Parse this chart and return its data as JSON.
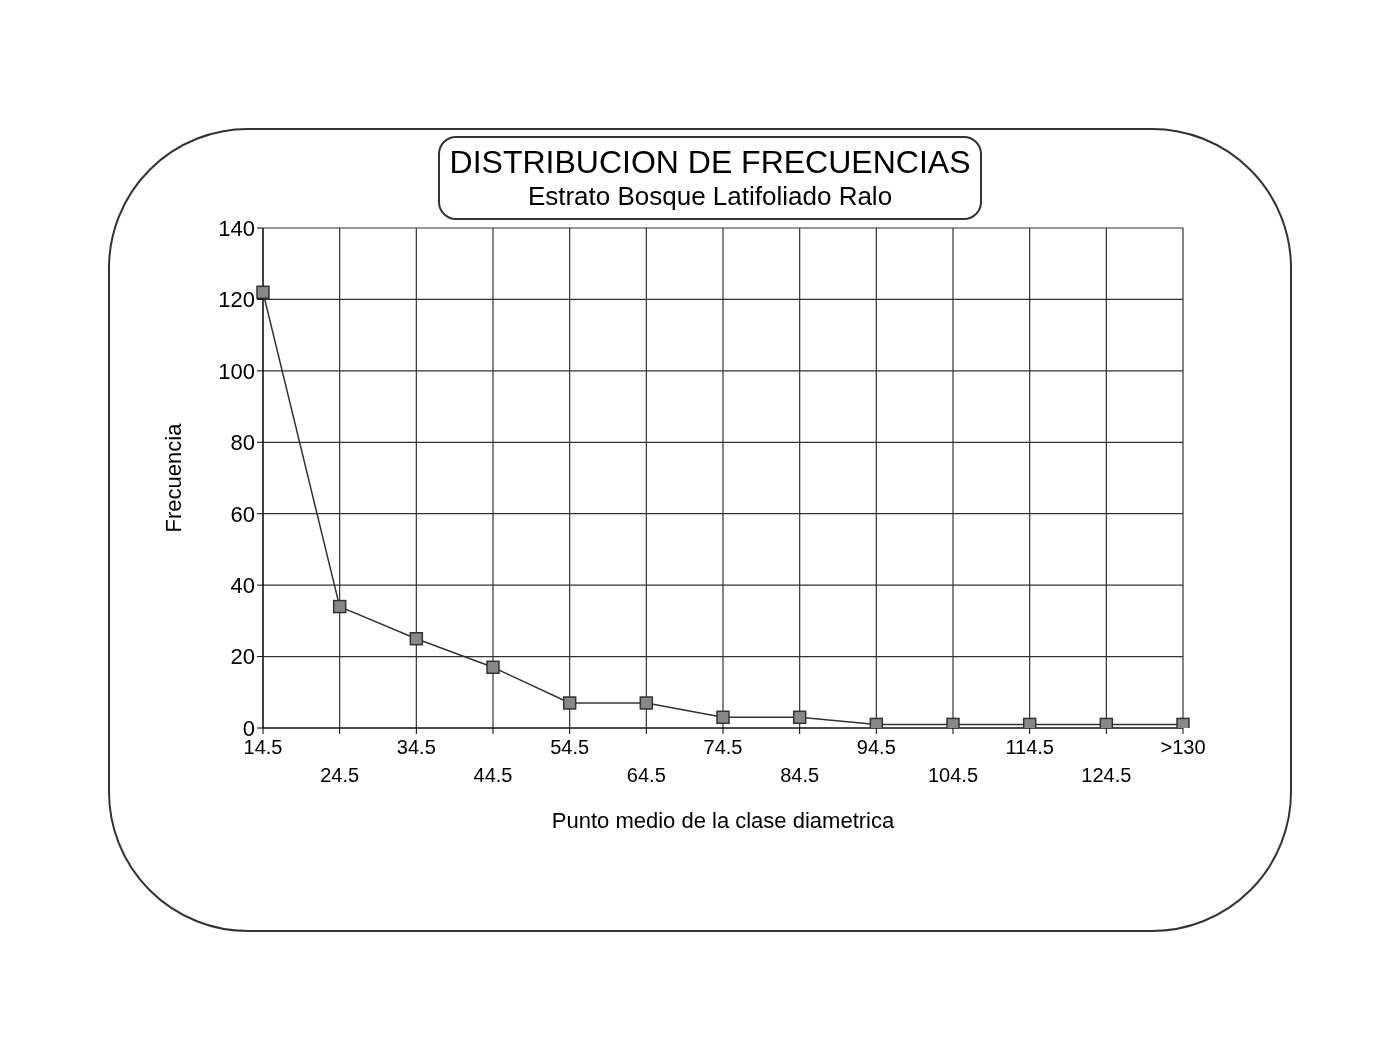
{
  "chart_data": {
    "type": "line",
    "title": "DISTRIBUCION DE FRECUENCIAS",
    "subtitle": "Estrato Bosque Latifoliado Ralo",
    "xlabel": "Punto medio de la clase diametrica",
    "ylabel": "Frecuencia",
    "categories": [
      "14.5",
      "24.5",
      "34.5",
      "44.5",
      "54.5",
      "64.5",
      "74.5",
      "84.5",
      "94.5",
      "104.5",
      "114.5",
      "124.5",
      ">130"
    ],
    "series": [
      {
        "color": "#333333",
        "values": [
          122,
          34,
          25,
          17,
          7,
          7,
          3,
          3,
          1,
          1,
          1,
          1,
          1
        ]
      }
    ],
    "ylim": [
      0,
      140
    ],
    "yticks": [
      0,
      20,
      40,
      60,
      80,
      100,
      120,
      140
    ],
    "grid": true,
    "legend": false,
    "marker": "square",
    "line_style": "solid"
  }
}
